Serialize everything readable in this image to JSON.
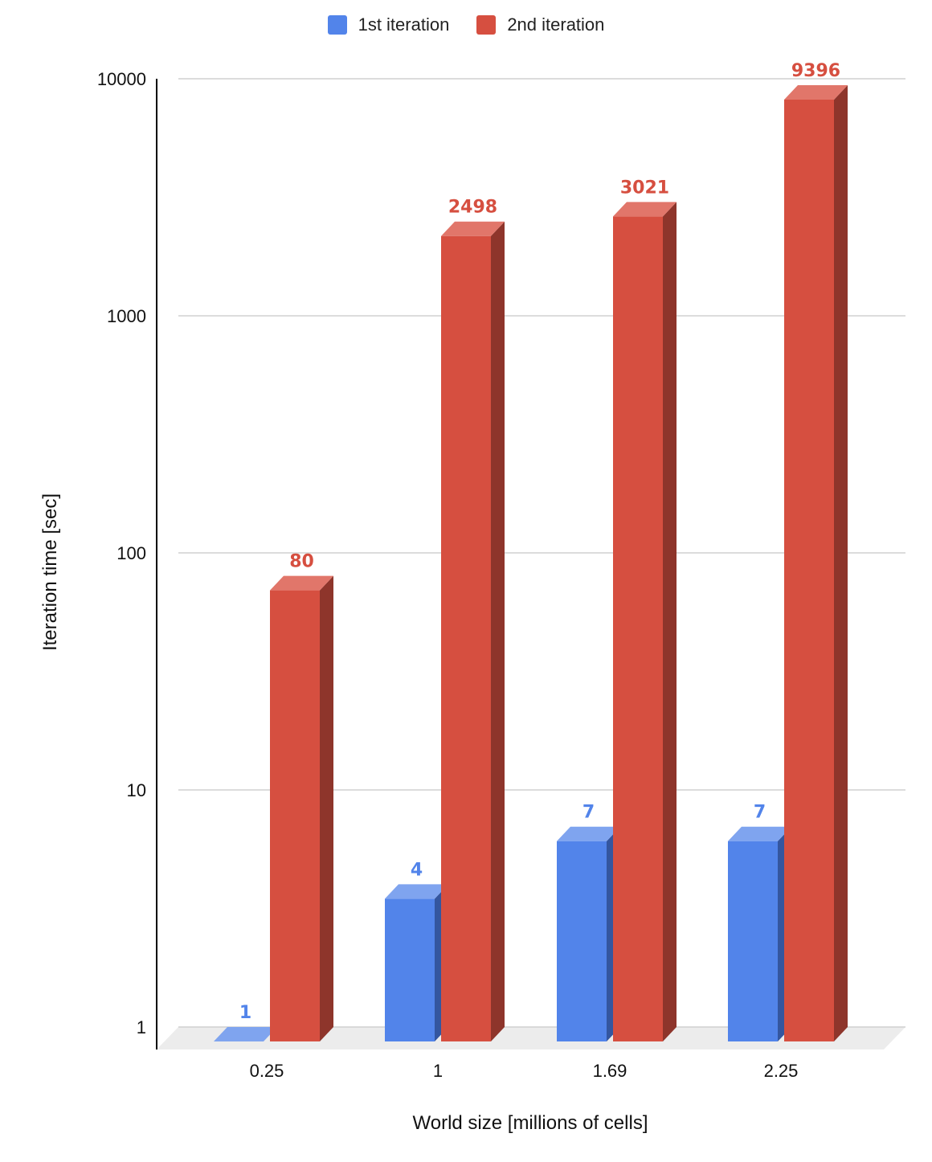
{
  "colors": {
    "series1": "#5284ea",
    "series1_top": "#7fa4ef",
    "series1_side": "#34569f",
    "series2": "#d64f40",
    "series2_top": "#e1766a",
    "series2_side": "#8e352b",
    "grid": "#d0d0d0",
    "floor": "#ececec",
    "axis": "#000000"
  },
  "chart_data": {
    "type": "bar",
    "subtype": "3d-grouped",
    "xlabel": "World size [millions of cells]",
    "ylabel": "Iteration time [sec]",
    "categories": [
      "0.25",
      "1",
      "1.69",
      "2.25"
    ],
    "y_scale": "log",
    "ylim": [
      1,
      10000
    ],
    "y_ticks": [
      "1",
      "10",
      "100",
      "1000",
      "10000"
    ],
    "grid": true,
    "legend_position": "top-center",
    "series": [
      {
        "name": "1st iteration",
        "values": [
          1,
          4,
          7,
          7
        ],
        "labels": [
          "1",
          "4",
          "7",
          "7"
        ]
      },
      {
        "name": "2nd iteration",
        "values": [
          80,
          2498,
          3021,
          9396
        ],
        "labels": [
          "80",
          "2498",
          "3021",
          "9396"
        ]
      }
    ]
  }
}
